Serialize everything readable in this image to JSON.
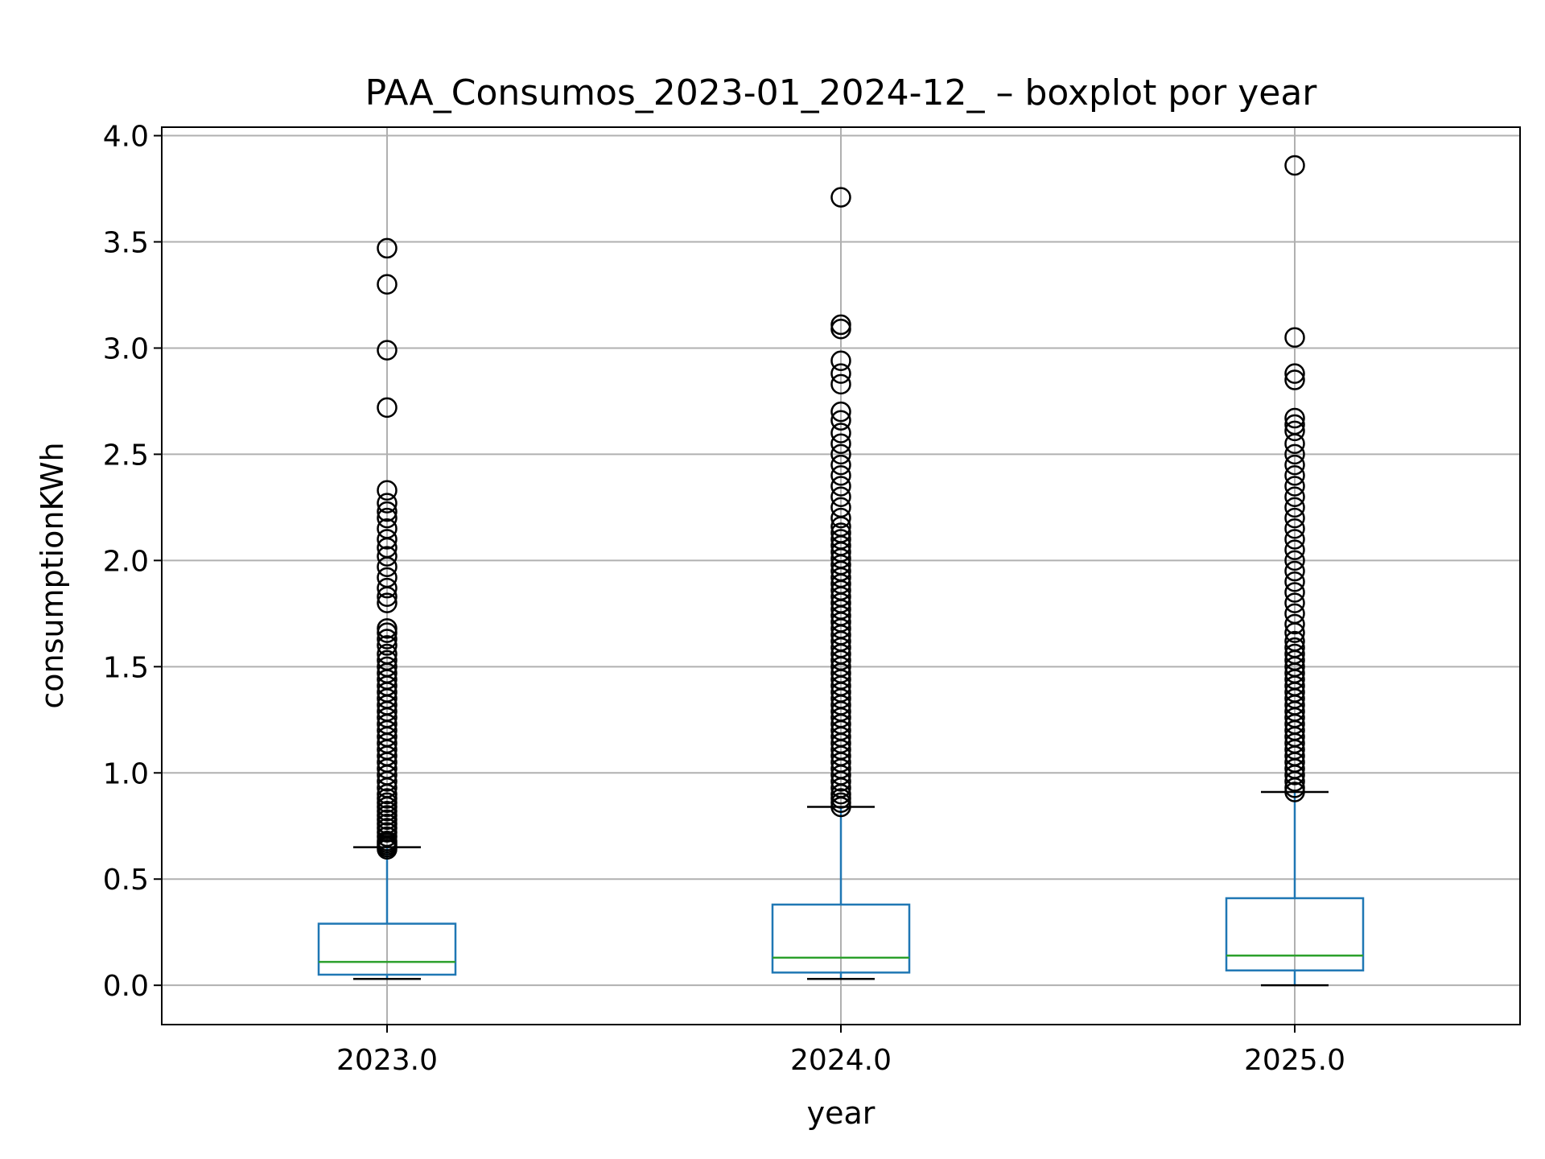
{
  "chart_data": {
    "type": "boxplot",
    "title": "PAA_Consumos_2023-01_2024-12_ – boxplot por year",
    "xlabel": "year",
    "ylabel": "consumptionKWh",
    "ylim": [
      -0.185,
      4.04
    ],
    "yticks": [
      "0.0",
      "0.5",
      "1.0",
      "1.5",
      "2.0",
      "2.5",
      "3.0",
      "3.5",
      "4.0"
    ],
    "grid": true,
    "colors": {
      "box": "#1f77b4",
      "median": "#2ca02c",
      "whisker": "#1f77b4",
      "cap": "#000000",
      "flier": "#000000",
      "grid": "#b0b0b0"
    },
    "categories": [
      "2023.0",
      "2024.0",
      "2025.0"
    ],
    "boxes": [
      {
        "whislo": 0.03,
        "q1": 0.05,
        "med": 0.11,
        "q3": 0.29,
        "whishi": 0.65,
        "fliers": [
          0.64,
          0.65,
          0.66,
          0.67,
          0.68,
          0.7,
          0.72,
          0.74,
          0.76,
          0.78,
          0.8,
          0.82,
          0.84,
          0.86,
          0.88,
          0.9,
          0.93,
          0.96,
          0.99,
          1.02,
          1.05,
          1.08,
          1.11,
          1.14,
          1.17,
          1.2,
          1.23,
          1.26,
          1.29,
          1.32,
          1.35,
          1.38,
          1.41,
          1.44,
          1.47,
          1.5,
          1.53,
          1.56,
          1.6,
          1.63,
          1.66,
          1.68,
          1.8,
          1.83,
          1.87,
          1.92,
          1.97,
          2.02,
          2.06,
          2.1,
          2.15,
          2.2,
          2.23,
          2.27,
          2.33,
          2.72,
          2.99,
          3.3,
          3.47
        ]
      },
      {
        "whislo": 0.03,
        "q1": 0.06,
        "med": 0.13,
        "q3": 0.38,
        "whishi": 0.84,
        "fliers": [
          0.84,
          0.86,
          0.88,
          0.9,
          0.93,
          0.96,
          0.99,
          1.02,
          1.05,
          1.08,
          1.11,
          1.14,
          1.17,
          1.2,
          1.23,
          1.26,
          1.29,
          1.32,
          1.35,
          1.38,
          1.41,
          1.44,
          1.47,
          1.5,
          1.53,
          1.56,
          1.59,
          1.62,
          1.65,
          1.68,
          1.71,
          1.74,
          1.77,
          1.8,
          1.83,
          1.86,
          1.89,
          1.92,
          1.95,
          1.98,
          2.01,
          2.04,
          2.07,
          2.1,
          2.13,
          2.16,
          2.2,
          2.25,
          2.3,
          2.35,
          2.4,
          2.45,
          2.5,
          2.55,
          2.6,
          2.66,
          2.7,
          2.83,
          2.88,
          2.94,
          3.09,
          3.11,
          3.71
        ]
      },
      {
        "whislo": 0.0,
        "q1": 0.07,
        "med": 0.14,
        "q3": 0.41,
        "whishi": 0.91,
        "fliers": [
          0.91,
          0.93,
          0.96,
          0.99,
          1.02,
          1.05,
          1.08,
          1.11,
          1.14,
          1.17,
          1.2,
          1.23,
          1.26,
          1.29,
          1.32,
          1.35,
          1.38,
          1.41,
          1.44,
          1.47,
          1.5,
          1.53,
          1.56,
          1.59,
          1.62,
          1.66,
          1.7,
          1.75,
          1.8,
          1.85,
          1.9,
          1.95,
          2.0,
          2.05,
          2.1,
          2.15,
          2.2,
          2.25,
          2.3,
          2.35,
          2.4,
          2.45,
          2.5,
          2.55,
          2.61,
          2.64,
          2.67,
          2.85,
          2.88,
          3.05,
          3.86
        ]
      }
    ]
  }
}
